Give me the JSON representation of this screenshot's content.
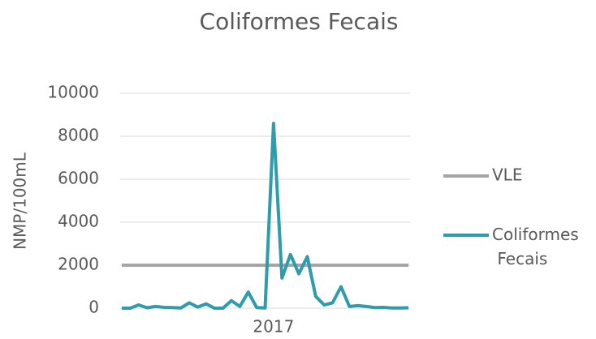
{
  "chart_data": {
    "type": "line",
    "title": "Coliformes Fecais",
    "ylabel": "NMP/100mL",
    "categories": [
      null,
      null,
      null,
      null,
      null,
      null,
      null,
      null,
      null,
      null,
      null,
      null,
      null,
      null,
      null,
      null,
      null,
      null,
      "2017",
      null,
      null,
      null,
      null,
      null,
      null,
      null,
      null,
      null,
      null,
      null,
      null,
      null,
      null,
      null,
      null
    ],
    "series": [
      {
        "name": "VLE",
        "color": "#a5a5a5",
        "values": [
          2000,
          2000,
          2000,
          2000,
          2000,
          2000,
          2000,
          2000,
          2000,
          2000,
          2000,
          2000,
          2000,
          2000,
          2000,
          2000,
          2000,
          2000,
          2000,
          2000,
          2000,
          2000,
          2000,
          2000,
          2000,
          2000,
          2000,
          2000,
          2000,
          2000,
          2000,
          2000,
          2000,
          2000,
          2000
        ]
      },
      {
        "name": "Coliformes Fecais",
        "color": "#2e9cab",
        "values": [
          0,
          0,
          150,
          20,
          80,
          40,
          30,
          10,
          250,
          50,
          200,
          0,
          0,
          350,
          80,
          750,
          30,
          10,
          8600,
          1400,
          2500,
          1600,
          2400,
          550,
          150,
          250,
          1000,
          80,
          120,
          80,
          30,
          40,
          10,
          10,
          20
        ]
      }
    ],
    "ylim": [
      0,
      10000
    ],
    "yticks": [
      0,
      2000,
      4000,
      6000,
      8000,
      10000
    ],
    "grid": true,
    "legend": "right"
  }
}
